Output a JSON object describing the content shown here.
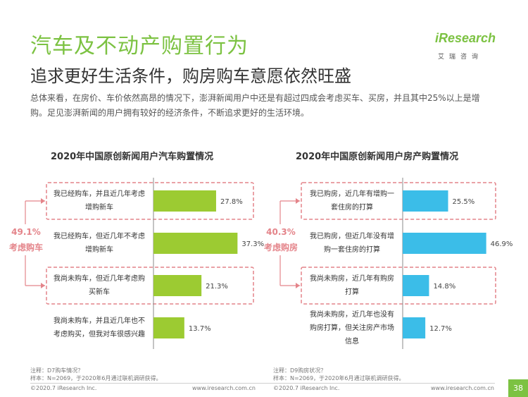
{
  "header": {
    "title": "汽车及不动产购置行为",
    "subtitle": "追求更好生活条件，购房购车意愿依然旺盛",
    "description": "总体来看，在房价、车价依然高昂的情况下，澎湃新闻用户中还是有超过四成会考虑买车、买房，并且其中25%以上是增购。足见澎湃新闻的用户拥有较好的经济条件，不断追求更好的生活环境。"
  },
  "logo": {
    "text": "iResearch",
    "sub": "艾瑞咨询"
  },
  "colors": {
    "accent": "#7cc242",
    "car_bar": "#9ccb32",
    "house_bar": "#3bbde8",
    "highlight": "#e4848a"
  },
  "car_group": {
    "pct": "49.1%",
    "label": "考虑购车"
  },
  "house_group": {
    "pct": "40.3%",
    "label": "考虑购房"
  },
  "chart_data": [
    {
      "type": "bar",
      "orientation": "horizontal",
      "title": "2020年中国原创新闻用户汽车购置情况",
      "categories": [
        [
          "我已经购车，并且近几年考虑",
          "增购新车"
        ],
        [
          "我已经购车，但近几年不考虑",
          "增购新车"
        ],
        [
          "我尚未购车，但近几年考虑购",
          "买新车"
        ],
        [
          "我尚未购车，并且近几年也不",
          "考虑购买，但我对车很感兴趣"
        ]
      ],
      "values": [
        27.8,
        37.3,
        21.3,
        13.7
      ],
      "labels": [
        "27.8%",
        "37.3%",
        "21.3%",
        "13.7%"
      ],
      "highlighted": [
        0,
        2
      ]
    },
    {
      "type": "bar",
      "orientation": "horizontal",
      "title": "2020年中国原创新闻用户房产购置情况",
      "categories": [
        [
          "我已购房，近几年有增购一",
          "套住房的打算"
        ],
        [
          "我已购房，但近几年没有增",
          "购一套住房的打算"
        ],
        [
          "我尚未购房，近几年有购房",
          "打算"
        ],
        [
          "我尚未购房，近几年也没有",
          "购房打算，但关注房产市场",
          "信息"
        ]
      ],
      "values": [
        25.5,
        46.9,
        14.8,
        12.7
      ],
      "labels": [
        "25.5%",
        "46.9%",
        "14.8%",
        "12.7%"
      ],
      "highlighted": [
        0,
        2
      ]
    }
  ],
  "notes": {
    "left": [
      "注释：D7购车情况？",
      "样本：N=2069，于2020年6月通过联机调研获得。"
    ],
    "right": [
      "注释：D9购房状况？",
      "样本：N=2069，于2020年6月通过联机调研获得。"
    ]
  },
  "footer": {
    "left_copyright": "©2020.7 iResearch Inc.",
    "left_url": "www.iresearch.com.cn",
    "right_copyright": "©2020.7 iResearch Inc.",
    "right_url": "www.iresearch.com.cn",
    "page_number": "38"
  }
}
